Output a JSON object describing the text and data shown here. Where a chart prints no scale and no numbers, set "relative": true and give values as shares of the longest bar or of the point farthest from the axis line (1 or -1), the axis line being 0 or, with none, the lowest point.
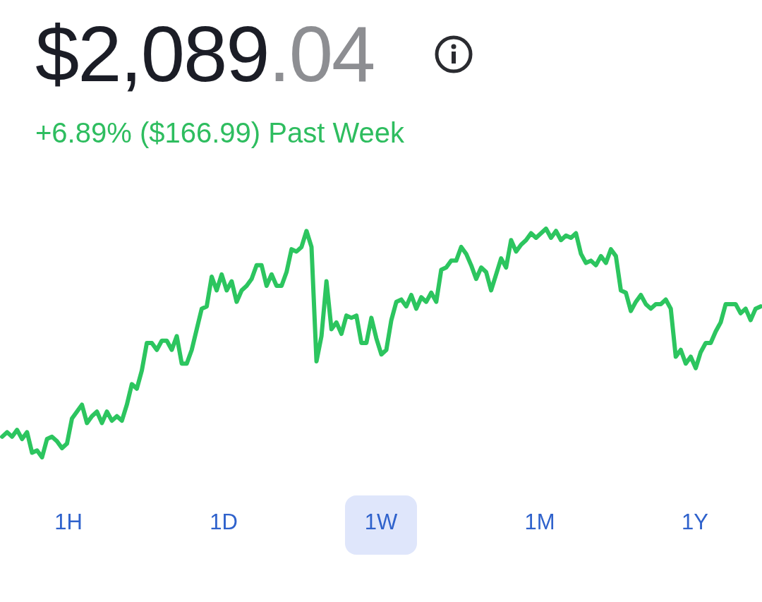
{
  "chart_data": {
    "type": "line",
    "title": "$2,089.04",
    "subtitle": "+6.89% ($166.99) Past Week",
    "relative": true,
    "marker": "none",
    "categories": [
      null,
      null,
      null,
      null,
      null,
      null,
      null,
      null,
      null,
      null,
      null,
      null,
      null,
      null,
      null,
      null,
      null,
      null,
      null,
      null,
      null,
      null,
      null,
      null,
      null,
      null,
      null,
      null,
      null,
      null,
      null,
      null,
      null,
      null,
      null,
      null,
      null,
      null,
      null,
      null,
      null,
      null,
      null,
      null,
      null,
      null,
      null,
      null,
      null,
      null,
      null,
      null,
      null,
      null,
      null,
      null,
      null,
      null,
      null,
      null,
      null,
      null,
      null,
      null,
      null,
      null,
      null,
      null,
      null,
      null,
      null,
      null,
      null,
      null,
      null,
      null,
      null,
      null,
      null,
      null,
      null,
      null,
      null,
      null,
      null,
      null,
      null,
      null,
      null,
      null,
      null,
      null,
      null,
      null,
      null,
      null,
      null,
      null,
      null,
      null,
      null,
      null,
      null,
      null,
      null,
      null,
      null,
      null,
      null,
      null,
      null,
      null,
      null,
      null,
      null,
      null,
      null,
      null,
      null,
      null,
      null,
      null,
      null,
      null,
      null,
      null,
      null,
      null,
      null,
      null,
      null,
      null,
      null,
      null,
      null,
      null,
      null,
      null,
      null,
      null,
      null,
      null,
      null,
      null,
      null,
      null,
      null,
      null,
      null,
      null,
      null,
      null,
      null
    ],
    "series": [
      {
        "color": "#2cc55f",
        "values": [
          0.09,
          0.11,
          0.09,
          0.12,
          0.08,
          0.11,
          0.02,
          0.03,
          0,
          0.08,
          0.09,
          0.07,
          0.04,
          0.06,
          0.17,
          0.2,
          0.23,
          0.15,
          0.18,
          0.2,
          0.15,
          0.2,
          0.16,
          0.18,
          0.16,
          0.23,
          0.32,
          0.3,
          0.38,
          0.5,
          0.5,
          0.47,
          0.51,
          0.51,
          0.47,
          0.53,
          0.41,
          0.41,
          0.47,
          0.56,
          0.65,
          0.66,
          0.79,
          0.73,
          0.8,
          0.73,
          0.77,
          0.68,
          0.73,
          0.75,
          0.78,
          0.84,
          0.84,
          0.75,
          0.8,
          0.75,
          0.75,
          0.81,
          0.91,
          0.9,
          0.92,
          0.99,
          0.92,
          0.42,
          0.53,
          0.77,
          0.56,
          0.59,
          0.54,
          0.62,
          0.61,
          0.62,
          0.5,
          0.5,
          0.61,
          0.52,
          0.45,
          0.47,
          0.6,
          0.68,
          0.69,
          0.66,
          0.71,
          0.65,
          0.7,
          0.68,
          0.72,
          0.68,
          0.82,
          0.83,
          0.86,
          0.86,
          0.92,
          0.89,
          0.84,
          0.78,
          0.83,
          0.81,
          0.73,
          0.8,
          0.87,
          0.83,
          0.95,
          0.9,
          0.93,
          0.95,
          0.98,
          0.96,
          0.98,
          1,
          0.96,
          0.99,
          0.95,
          0.97,
          0.96,
          0.98,
          0.89,
          0.85,
          0.86,
          0.84,
          0.88,
          0.85,
          0.91,
          0.88,
          0.73,
          0.72,
          0.64,
          0.68,
          0.71,
          0.67,
          0.65,
          0.67,
          0.67,
          0.69,
          0.65,
          0.44,
          0.47,
          0.41,
          0.44,
          0.39,
          0.46,
          0.5,
          0.5,
          0.55,
          0.59,
          0.67,
          0.67,
          0.67,
          0.63,
          0.65,
          0.6,
          0.65,
          0.66
        ]
      }
    ],
    "annotations": [
      "1H",
      "1D",
      "1W",
      "1M",
      "1Y"
    ]
  }
}
